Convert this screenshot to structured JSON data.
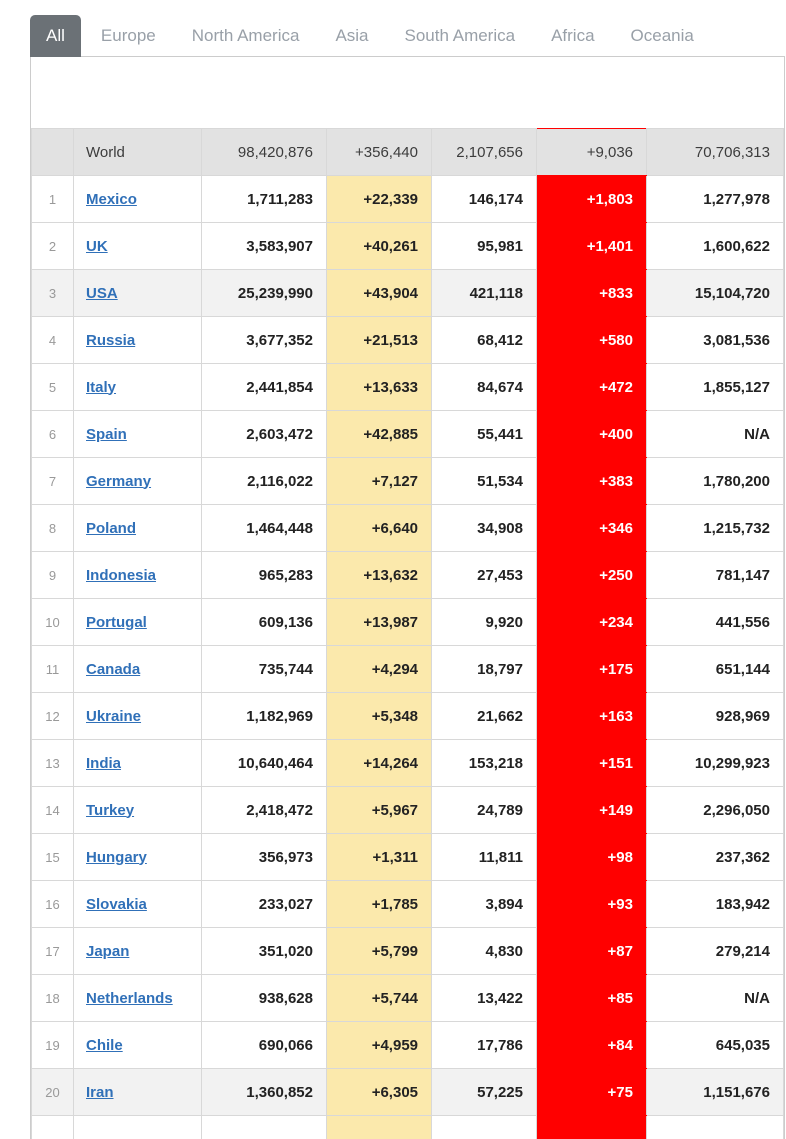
{
  "tabs": [
    {
      "label": "All",
      "selected": true
    },
    {
      "label": "Europe",
      "selected": false
    },
    {
      "label": "North America",
      "selected": false
    },
    {
      "label": "Asia",
      "selected": false
    },
    {
      "label": "South America",
      "selected": false
    },
    {
      "label": "Africa",
      "selected": false
    },
    {
      "label": "Oceania",
      "selected": false
    }
  ],
  "colors": {
    "new_cases_bg": "#FBE9AC",
    "new_deaths_bg": "#FF0000",
    "link_blue": "#3070B8",
    "selected_tab_bg": "#6B7176",
    "total_row_bg": "#E2E2E2",
    "shaded_row_bg": "#F2F2F2"
  },
  "table": {
    "total_row": {
      "name": "World",
      "total_cases": "98,420,876",
      "new_cases": "+356,440",
      "total_deaths": "2,107,656",
      "new_deaths": "+9,036",
      "recovered": "70,706,313"
    },
    "rows": [
      {
        "rank": "1",
        "name": "Mexico",
        "total_cases": "1,711,283",
        "new_cases": "+22,339",
        "total_deaths": "146,174",
        "new_deaths": "+1,803",
        "recovered": "1,277,978",
        "shaded": false
      },
      {
        "rank": "2",
        "name": "UK",
        "total_cases": "3,583,907",
        "new_cases": "+40,261",
        "total_deaths": "95,981",
        "new_deaths": "+1,401",
        "recovered": "1,600,622",
        "shaded": false
      },
      {
        "rank": "3",
        "name": "USA",
        "total_cases": "25,239,990",
        "new_cases": "+43,904",
        "total_deaths": "421,118",
        "new_deaths": "+833",
        "recovered": "15,104,720",
        "shaded": true
      },
      {
        "rank": "4",
        "name": "Russia",
        "total_cases": "3,677,352",
        "new_cases": "+21,513",
        "total_deaths": "68,412",
        "new_deaths": "+580",
        "recovered": "3,081,536",
        "shaded": false
      },
      {
        "rank": "5",
        "name": "Italy",
        "total_cases": "2,441,854",
        "new_cases": "+13,633",
        "total_deaths": "84,674",
        "new_deaths": "+472",
        "recovered": "1,855,127",
        "shaded": false
      },
      {
        "rank": "6",
        "name": "Spain",
        "total_cases": "2,603,472",
        "new_cases": "+42,885",
        "total_deaths": "55,441",
        "new_deaths": "+400",
        "recovered": "N/A",
        "shaded": false
      },
      {
        "rank": "7",
        "name": "Germany",
        "total_cases": "2,116,022",
        "new_cases": "+7,127",
        "total_deaths": "51,534",
        "new_deaths": "+383",
        "recovered": "1,780,200",
        "shaded": false
      },
      {
        "rank": "8",
        "name": "Poland",
        "total_cases": "1,464,448",
        "new_cases": "+6,640",
        "total_deaths": "34,908",
        "new_deaths": "+346",
        "recovered": "1,215,732",
        "shaded": false
      },
      {
        "rank": "9",
        "name": "Indonesia",
        "total_cases": "965,283",
        "new_cases": "+13,632",
        "total_deaths": "27,453",
        "new_deaths": "+250",
        "recovered": "781,147",
        "shaded": false
      },
      {
        "rank": "10",
        "name": "Portugal",
        "total_cases": "609,136",
        "new_cases": "+13,987",
        "total_deaths": "9,920",
        "new_deaths": "+234",
        "recovered": "441,556",
        "shaded": false
      },
      {
        "rank": "11",
        "name": "Canada",
        "total_cases": "735,744",
        "new_cases": "+4,294",
        "total_deaths": "18,797",
        "new_deaths": "+175",
        "recovered": "651,144",
        "shaded": false
      },
      {
        "rank": "12",
        "name": "Ukraine",
        "total_cases": "1,182,969",
        "new_cases": "+5,348",
        "total_deaths": "21,662",
        "new_deaths": "+163",
        "recovered": "928,969",
        "shaded": false
      },
      {
        "rank": "13",
        "name": "India",
        "total_cases": "10,640,464",
        "new_cases": "+14,264",
        "total_deaths": "153,218",
        "new_deaths": "+151",
        "recovered": "10,299,923",
        "shaded": false
      },
      {
        "rank": "14",
        "name": "Turkey",
        "total_cases": "2,418,472",
        "new_cases": "+5,967",
        "total_deaths": "24,789",
        "new_deaths": "+149",
        "recovered": "2,296,050",
        "shaded": false
      },
      {
        "rank": "15",
        "name": "Hungary",
        "total_cases": "356,973",
        "new_cases": "+1,311",
        "total_deaths": "11,811",
        "new_deaths": "+98",
        "recovered": "237,362",
        "shaded": false
      },
      {
        "rank": "16",
        "name": "Slovakia",
        "total_cases": "233,027",
        "new_cases": "+1,785",
        "total_deaths": "3,894",
        "new_deaths": "+93",
        "recovered": "183,942",
        "shaded": false
      },
      {
        "rank": "17",
        "name": "Japan",
        "total_cases": "351,020",
        "new_cases": "+5,799",
        "total_deaths": "4,830",
        "new_deaths": "+87",
        "recovered": "279,214",
        "shaded": false
      },
      {
        "rank": "18",
        "name": "Netherlands",
        "total_cases": "938,628",
        "new_cases": "+5,744",
        "total_deaths": "13,422",
        "new_deaths": "+85",
        "recovered": "N/A",
        "shaded": false
      },
      {
        "rank": "19",
        "name": "Chile",
        "total_cases": "690,066",
        "new_cases": "+4,959",
        "total_deaths": "17,786",
        "new_deaths": "+84",
        "recovered": "645,035",
        "shaded": false
      },
      {
        "rank": "20",
        "name": "Iran",
        "total_cases": "1,360,852",
        "new_cases": "+6,305",
        "total_deaths": "57,225",
        "new_deaths": "+75",
        "recovered": "1,151,676",
        "shaded": true
      }
    ]
  }
}
